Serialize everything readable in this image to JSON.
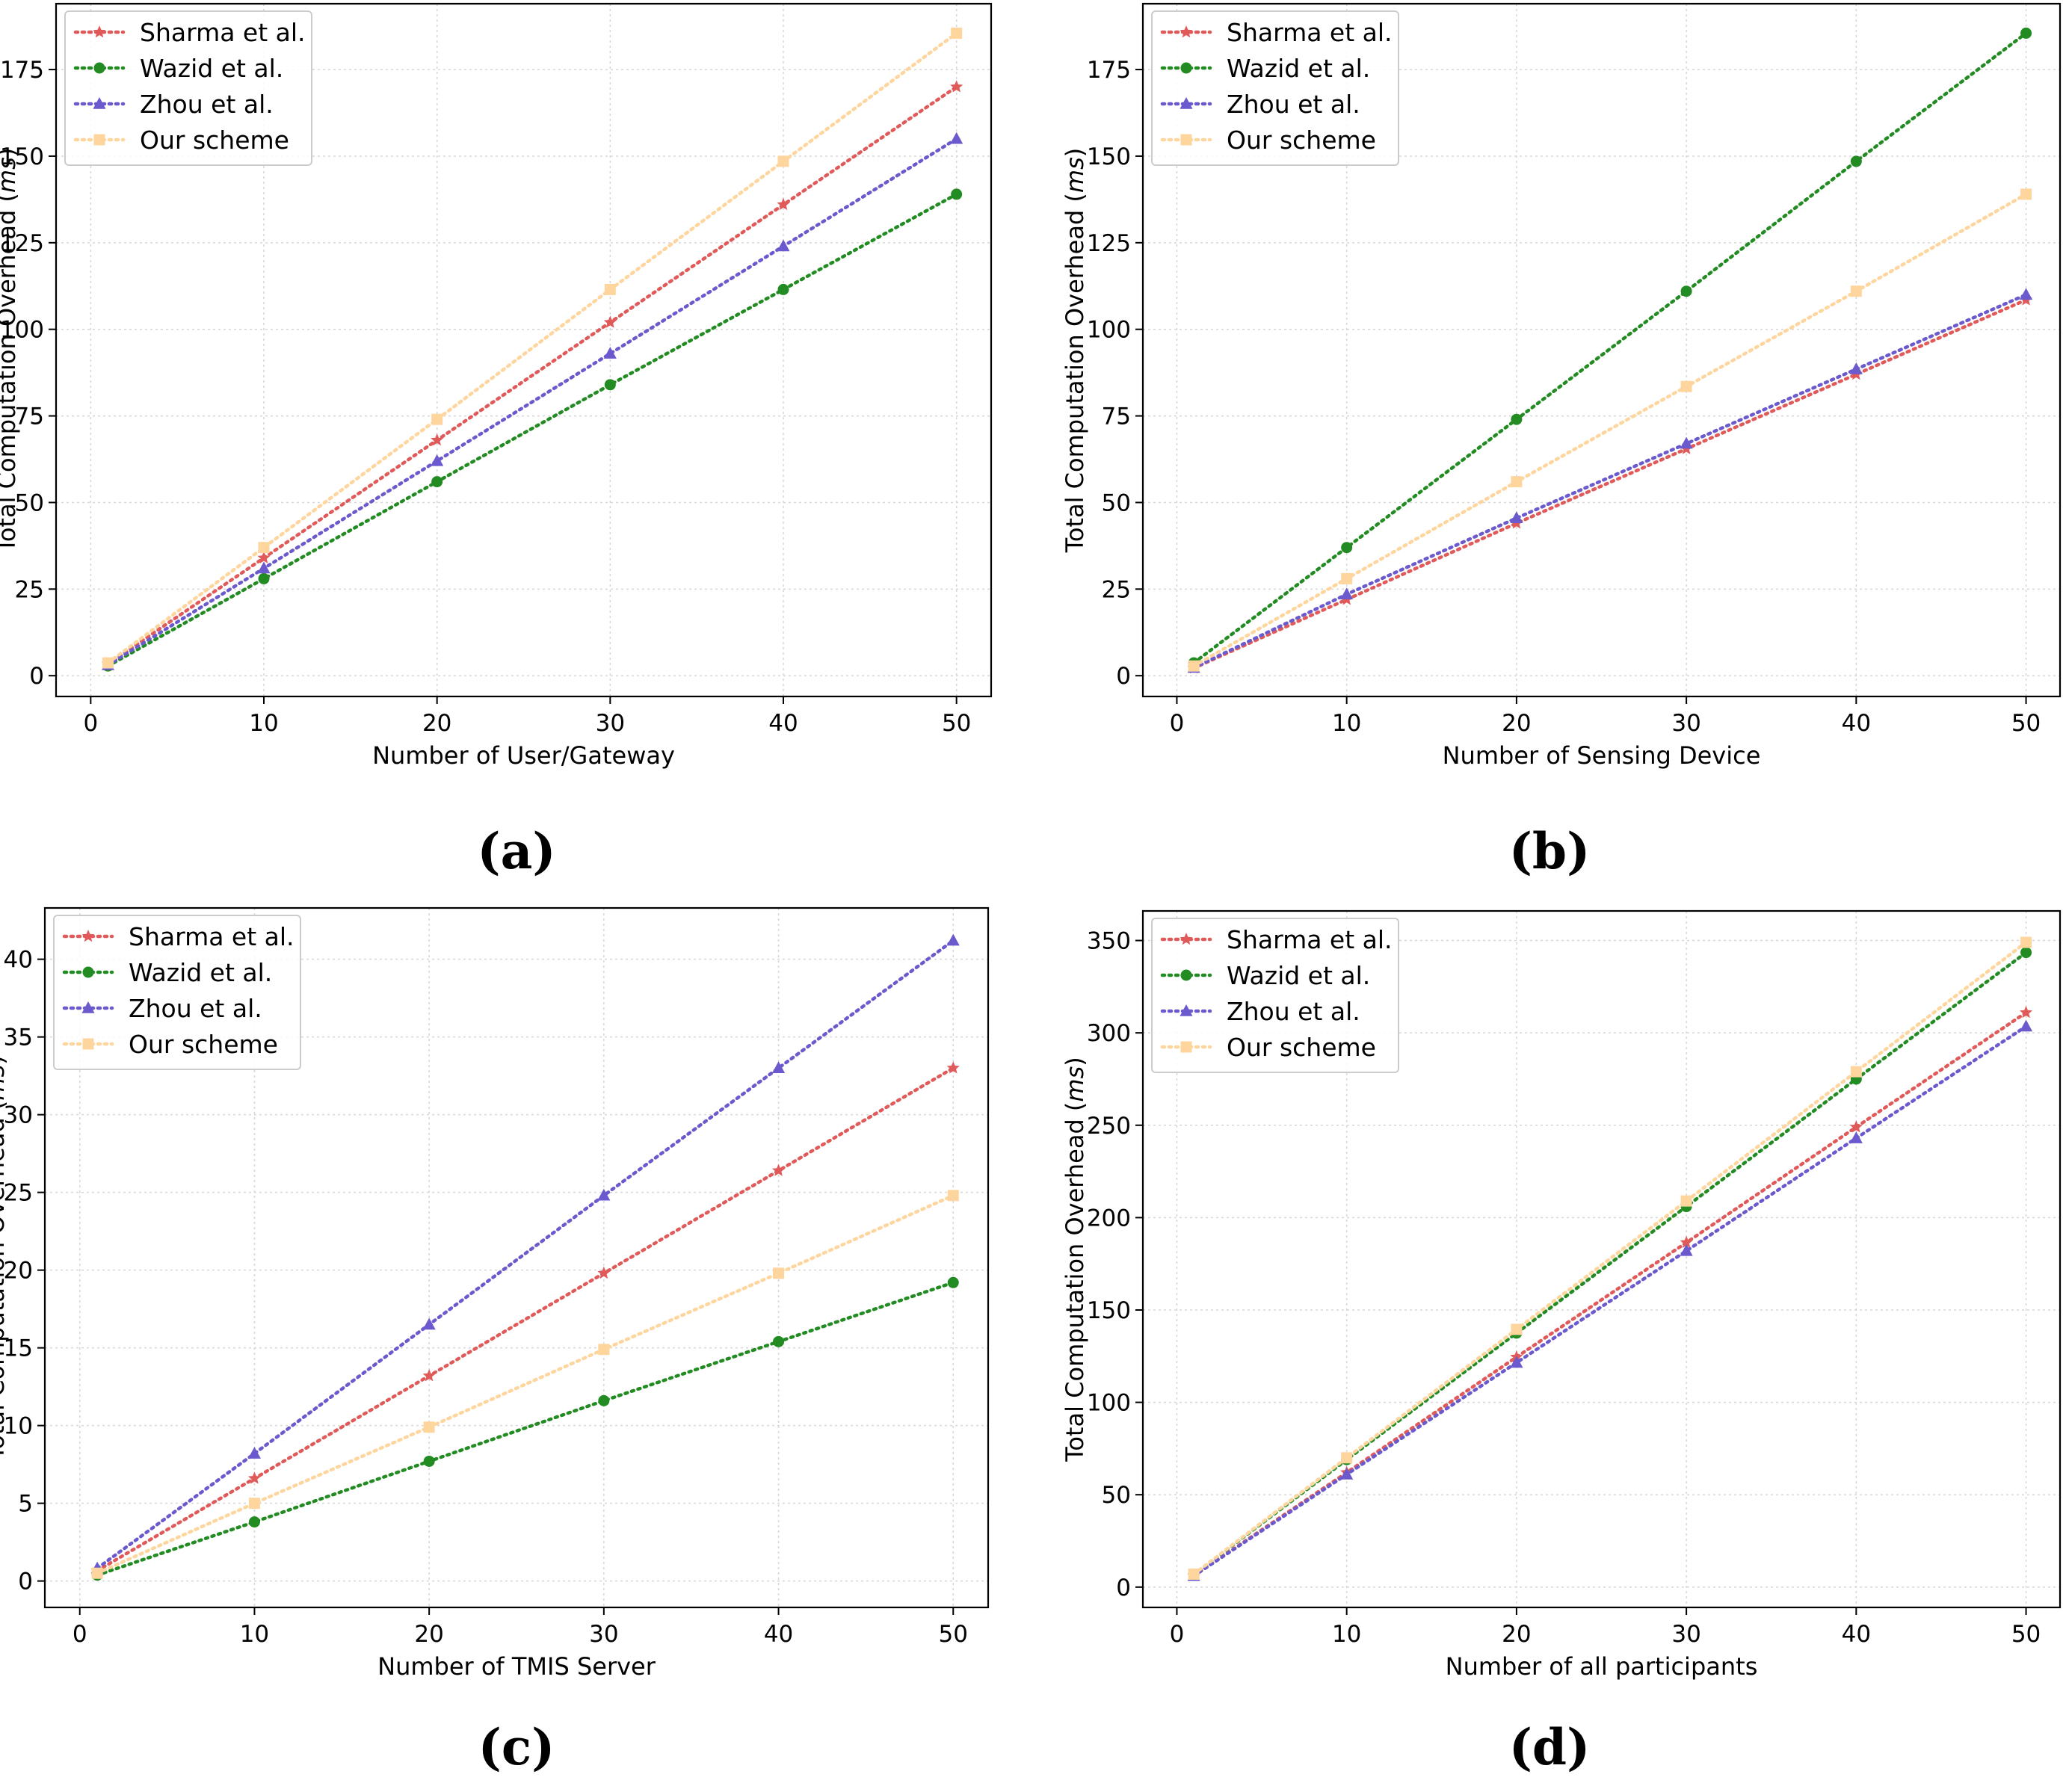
{
  "chart_data": [
    {
      "type": "line",
      "caption": "(a)",
      "xlabel": "Number of User/Gateway",
      "ylabel_main": "Total Computation Overhead (",
      "ylabel_unit": "ms",
      "ylabel_end": ")",
      "xlim": [
        -2,
        52
      ],
      "ylim": [
        -6,
        194
      ],
      "xticks": [
        0,
        10,
        20,
        30,
        40,
        50
      ],
      "yticks": [
        0,
        25,
        50,
        75,
        100,
        125,
        150,
        175
      ],
      "legend_position": "upper-left",
      "x": [
        1,
        10,
        20,
        30,
        40,
        50
      ],
      "series": [
        {
          "name": "Sharma et al.",
          "color": "#e05a5a",
          "marker": "star",
          "values": [
            3.4,
            34,
            68,
            102,
            136,
            170
          ]
        },
        {
          "name": "Wazid et al.",
          "color": "#228b22",
          "marker": "circle",
          "values": [
            2.8,
            28,
            56,
            84,
            111.5,
            139
          ]
        },
        {
          "name": "Zhou et al.",
          "color": "#6a5acd",
          "marker": "triangle",
          "values": [
            3.1,
            31,
            62,
            93,
            124,
            155
          ]
        },
        {
          "name": "Our scheme",
          "color": "#ffd59e",
          "marker": "square",
          "values": [
            3.7,
            37,
            74,
            111.5,
            148.5,
            185.5
          ]
        }
      ]
    },
    {
      "type": "line",
      "caption": "(b)",
      "xlabel": "Number of Sensing Device",
      "ylabel_main": "Total Computation Overhead (",
      "ylabel_unit": "ms",
      "ylabel_end": ")",
      "xlim": [
        -2,
        52
      ],
      "ylim": [
        -6,
        194
      ],
      "xticks": [
        0,
        10,
        20,
        30,
        40,
        50
      ],
      "yticks": [
        0,
        25,
        50,
        75,
        100,
        125,
        150,
        175
      ],
      "legend_position": "upper-left",
      "x": [
        1,
        10,
        20,
        30,
        40,
        50
      ],
      "series": [
        {
          "name": "Sharma et al.",
          "color": "#e05a5a",
          "marker": "star",
          "values": [
            2.2,
            22,
            44,
            65.5,
            87,
            108.5
          ]
        },
        {
          "name": "Wazid et al.",
          "color": "#228b22",
          "marker": "circle",
          "values": [
            3.7,
            37,
            74,
            111,
            148.5,
            185.5
          ]
        },
        {
          "name": "Zhou et al.",
          "color": "#6a5acd",
          "marker": "triangle",
          "values": [
            2.3,
            23.5,
            45.5,
            67,
            88.5,
            110
          ]
        },
        {
          "name": "Our scheme",
          "color": "#ffd59e",
          "marker": "square",
          "values": [
            2.8,
            28,
            56,
            83.5,
            111,
            139
          ]
        }
      ]
    },
    {
      "type": "line",
      "caption": "(c)",
      "xlabel": "Number of TMIS Server",
      "ylabel_main": "Total Computation Overhead (",
      "ylabel_unit": "ms",
      "ylabel_end": ")",
      "xlim": [
        -2,
        52
      ],
      "ylim": [
        -1.7,
        43.3
      ],
      "xticks": [
        0,
        10,
        20,
        30,
        40,
        50
      ],
      "yticks": [
        0,
        5,
        10,
        15,
        20,
        25,
        30,
        35,
        40
      ],
      "legend_position": "upper-left",
      "x": [
        1,
        10,
        20,
        30,
        40,
        50
      ],
      "series": [
        {
          "name": "Sharma et al.",
          "color": "#e05a5a",
          "marker": "star",
          "values": [
            0.66,
            6.6,
            13.2,
            19.8,
            26.4,
            33
          ]
        },
        {
          "name": "Wazid et al.",
          "color": "#228b22",
          "marker": "circle",
          "values": [
            0.38,
            3.8,
            7.7,
            11.6,
            15.4,
            19.2
          ]
        },
        {
          "name": "Zhou et al.",
          "color": "#6a5acd",
          "marker": "triangle",
          "values": [
            0.82,
            8.2,
            16.5,
            24.8,
            33,
            41.2
          ]
        },
        {
          "name": "Our scheme",
          "color": "#ffd59e",
          "marker": "square",
          "values": [
            0.5,
            5,
            9.9,
            14.9,
            19.8,
            24.8
          ]
        }
      ]
    },
    {
      "type": "line",
      "caption": "(d)",
      "xlabel": "Number of all participants",
      "ylabel_main": "Total Computation Overhead (",
      "ylabel_unit": "ms",
      "ylabel_end": ")",
      "xlim": [
        -2,
        52
      ],
      "ylim": [
        -11,
        366
      ],
      "xticks": [
        0,
        10,
        20,
        30,
        40,
        50
      ],
      "yticks": [
        0,
        50,
        100,
        150,
        200,
        250,
        300,
        350
      ],
      "legend_position": "upper-left",
      "x": [
        1,
        10,
        20,
        30,
        40,
        50
      ],
      "series": [
        {
          "name": "Sharma et al.",
          "color": "#e05a5a",
          "marker": "star",
          "values": [
            6.2,
            62,
            124.5,
            186.5,
            249,
            311
          ]
        },
        {
          "name": "Wazid et al.",
          "color": "#228b22",
          "marker": "circle",
          "values": [
            6.9,
            69,
            137.5,
            206,
            275,
            343.5
          ]
        },
        {
          "name": "Zhou et al.",
          "color": "#6a5acd",
          "marker": "triangle",
          "values": [
            6.1,
            61,
            121.5,
            182,
            243,
            303.5
          ]
        },
        {
          "name": "Our scheme",
          "color": "#ffd59e",
          "marker": "square",
          "values": [
            7,
            70,
            139.5,
            209,
            279,
            349
          ]
        }
      ]
    }
  ]
}
